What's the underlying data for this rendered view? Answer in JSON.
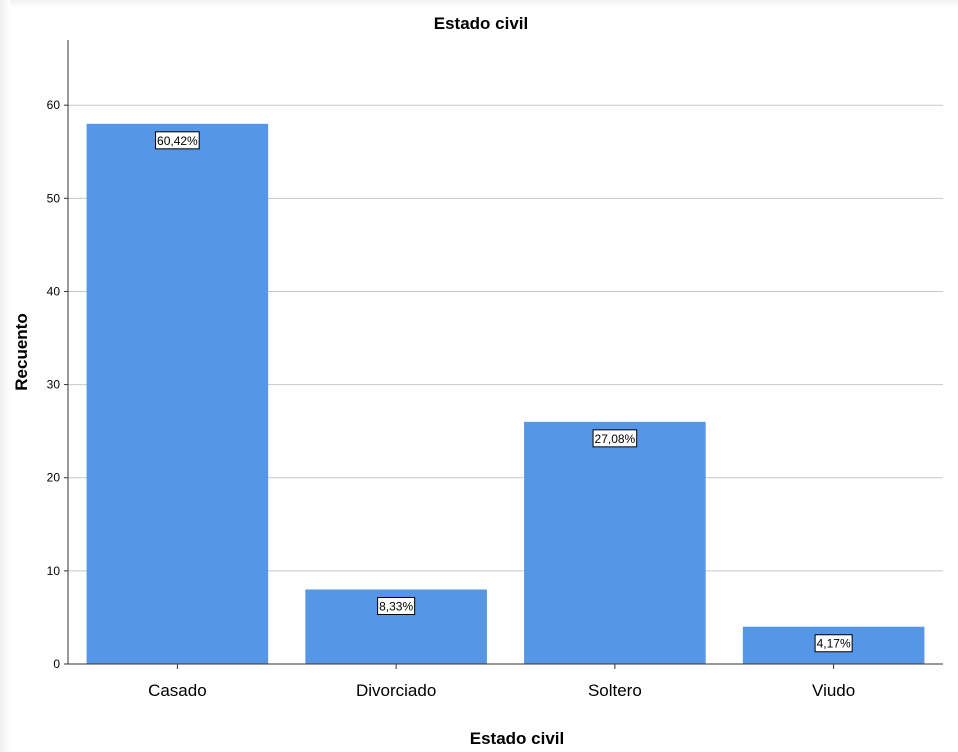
{
  "chart_data": {
    "type": "bar",
    "title": "Estado civil",
    "xlabel": "Estado civil",
    "ylabel": "Recuento",
    "categories": [
      "Casado",
      "Divorciado",
      "Soltero",
      "Viudo"
    ],
    "values": [
      58,
      8,
      26,
      4
    ],
    "data_labels": [
      "60,42%",
      "8,33%",
      "27,08%",
      "4,17%"
    ],
    "yticks": [
      0,
      10,
      20,
      30,
      40,
      50,
      60
    ],
    "ylim": [
      0,
      67
    ],
    "grid": true,
    "bar_color": "#5596e6",
    "gridline_color": "#c8c8c8"
  }
}
